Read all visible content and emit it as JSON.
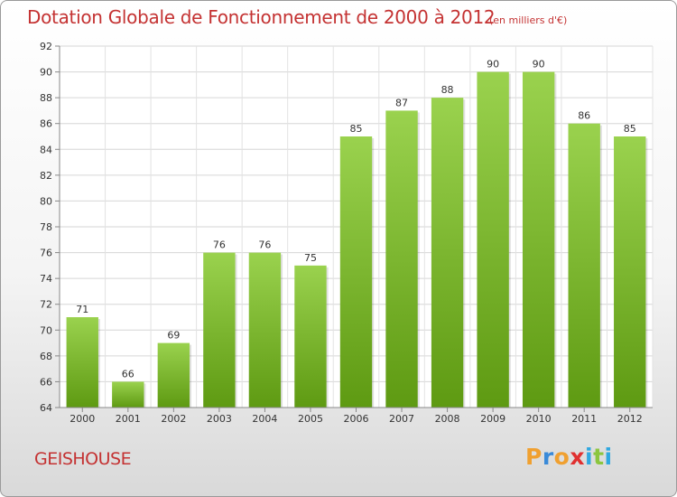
{
  "header": {
    "title": "Dotation Globale de Fonctionnement de 2000 à 2012",
    "unit_note": "(en milliers d'€)"
  },
  "footer": {
    "commune": "GEISHOUSE",
    "logo_text": "Proxiti",
    "logo_letters": [
      {
        "ch": "P",
        "color": "#f0a030"
      },
      {
        "ch": "r",
        "color": "#3a8ad8"
      },
      {
        "ch": "o",
        "color": "#f0a030"
      },
      {
        "ch": "x",
        "color": "#e03030"
      },
      {
        "ch": "i",
        "color": "#30a8e0"
      },
      {
        "ch": "t",
        "color": "#8cc63f"
      },
      {
        "ch": "i",
        "color": "#30a8e0"
      }
    ]
  },
  "colors": {
    "title": "#c43232",
    "bar_light": "#9ad24e",
    "bar_dark": "#5e9a12"
  },
  "chart_data": {
    "type": "bar",
    "title": "Dotation Globale de Fonctionnement de 2000 à 2012",
    "subtitle": "(en milliers d'€)",
    "xlabel": "",
    "ylabel": "",
    "categories": [
      "2000",
      "2001",
      "2002",
      "2003",
      "2004",
      "2005",
      "2006",
      "2007",
      "2008",
      "2009",
      "2010",
      "2011",
      "2012"
    ],
    "values": [
      71,
      66,
      69,
      76,
      76,
      75,
      85,
      87,
      88,
      90,
      90,
      86,
      85
    ],
    "ylim": [
      64,
      92
    ],
    "yticks": [
      64,
      66,
      68,
      70,
      72,
      74,
      76,
      78,
      80,
      82,
      84,
      86,
      88,
      90,
      92
    ],
    "grid": true,
    "legend": "none"
  }
}
